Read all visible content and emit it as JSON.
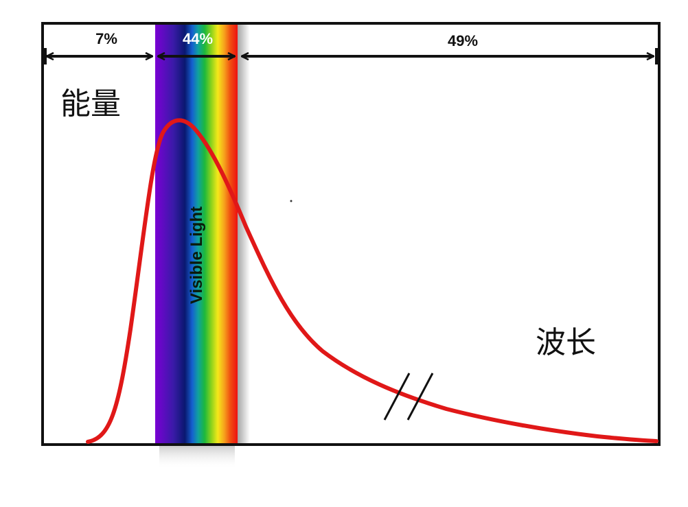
{
  "segments": {
    "left_label": "7%",
    "visible_label": "44%",
    "right_label": "49%"
  },
  "labels": {
    "energy": "能量",
    "wavelength": "波长",
    "visible_light": "Visible Light"
  },
  "colors": {
    "curve": "#e01818",
    "frame": "#111111",
    "arrows": "#111111",
    "spectrum": [
      "#7a00d4",
      "#3a1aa8",
      "#0a1870",
      "#1560d0",
      "#10a0a0",
      "#1cb83c",
      "#8ad21c",
      "#f5e81a",
      "#f6a01c",
      "#f05010",
      "#ee1010"
    ]
  },
  "icons": {
    "break_mark": "axis-break-double-slash-icon"
  }
}
